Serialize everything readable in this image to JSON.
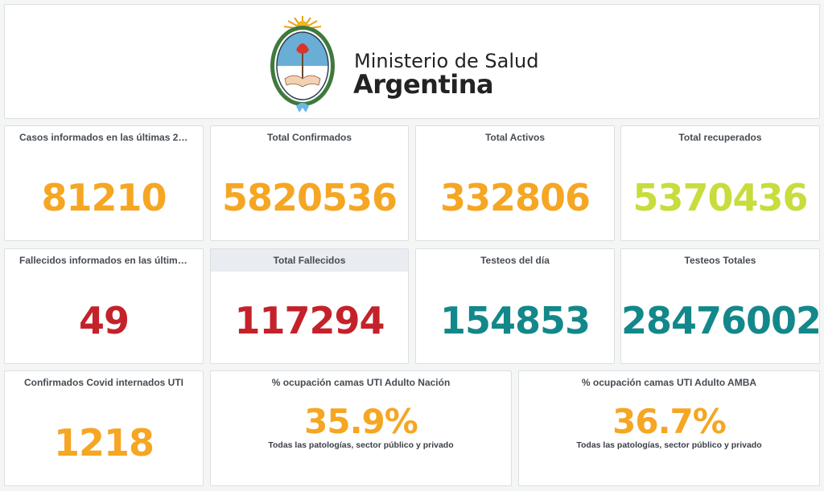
{
  "header": {
    "ministry": "Ministerio de Salud",
    "country": "Argentina"
  },
  "row1": [
    {
      "title": "Casos informados en las últimas 24...",
      "value": "81210",
      "color": "#f5a623"
    },
    {
      "title": "Total Confirmados",
      "value": "5820536",
      "color": "#f5a623"
    },
    {
      "title": "Total Activos",
      "value": "332806",
      "color": "#f5a623"
    },
    {
      "title": "Total recuperados",
      "value": "5370436",
      "color": "#c8dc3c"
    }
  ],
  "row2": [
    {
      "title": "Fallecidos informados en las última...",
      "value": "49",
      "color": "#c4222b"
    },
    {
      "title": "Total Fallecidos",
      "value": "117294",
      "color": "#c4222b"
    },
    {
      "title": "Testeos del día",
      "value": "154853",
      "color": "#12888a"
    },
    {
      "title": "Testeos Totales",
      "value": "28476002",
      "color": "#12888a"
    }
  ],
  "row3": {
    "uti": {
      "title": "Confirmados Covid internados UTI",
      "value": "1218",
      "color": "#f5a623"
    },
    "nacion": {
      "title": "% ocupación camas UTI Adulto Nación",
      "value": "35.9%",
      "subtitle": "Todas las patologías, sector público y privado",
      "color": "#f5a623"
    },
    "amba": {
      "title": "% ocupación camas UTI Adulto AMBA",
      "value": "36.7%",
      "subtitle": "Todas las patologías, sector público y privado",
      "color": "#f5a623"
    }
  }
}
